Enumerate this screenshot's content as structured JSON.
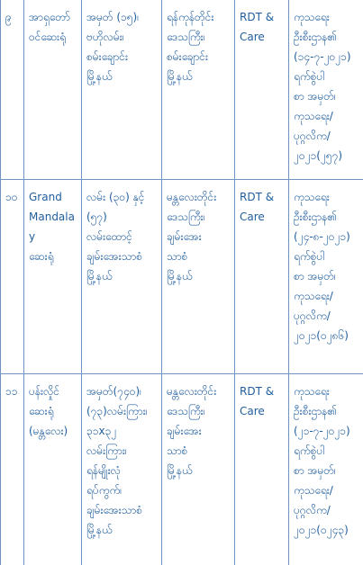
{
  "rows": [
    {
      "no": "၉",
      "name": [
        "အာရှတော်",
        "ဝင်ဆေးရုံ"
      ],
      "address": [
        "အမှတ် (၁၅)၊",
        "ဗဟိုလမ်း၊",
        "စမ်းချောင်း",
        "မြို့နယ်"
      ],
      "region": [
        "ရန်ကုန်တိုင်း",
        "ဒေသကြီး၊",
        "စမ်းချောင်း",
        "မြို့နယ်"
      ],
      "care": [
        "RDT &",
        "Care"
      ],
      "permit": [
        "ကုသရေး",
        "ဦးစီးဌာန၏",
        "(၁၄-၇-၂၀၂၁)",
        "ရက်စွဲပါ",
        "စာ အမှတ်၊",
        "ကုသရေး/",
        "ပုဂ္ဂလိက/",
        "၂၀၂၁(၂၅၇)"
      ]
    },
    {
      "no": "၁၀",
      "name": [
        "Grand",
        "Mandalay",
        "ဆေးရုံ"
      ],
      "address": [
        "လမ်း (၃၀) နှင့်",
        "(၅၇)",
        "လမ်းထောင့်",
        "ချမ်းအေးသာစံ",
        "မြို့နယ်"
      ],
      "region": [
        "မန္တလေးတိုင်း",
        "ဒေသကြီး၊",
        "ချမ်းအေး",
        "သာစံ",
        "မြို့နယ်"
      ],
      "care": [
        "RDT &",
        "Care"
      ],
      "permit": [
        "ကုသရေး",
        "ဦးစီးဌာန၏",
        "(၂၄-၈-၂၀၂၁)",
        "ရက်စွဲပါ",
        "စာ အမှတ်၊",
        "ကုသရေး/",
        "ပုဂ္ဂလိက/",
        "၂၀၂၁(၀၂၈၆)"
      ]
    },
    {
      "no": "၁၁",
      "name": [
        "ပန်းလှိုင်",
        "ဆေးရုံ",
        "(မန္တလေး)"
      ],
      "address": [
        "အမှတ်(၇၄၀)၊",
        "(၇၃)လမ်းကြား၊",
        "၃၁x၃၂",
        "လမ်းကြား၊",
        "ရန်မျိုးလုံ",
        "ရပ်ကွက်၊",
        "ချမ်းအေးသာစံ",
        "မြို့နယ်"
      ],
      "region": [
        "မန္တလေးတိုင်း",
        "ဒေသကြီး၊",
        "ချမ်းအေး",
        "သာစံ",
        "မြို့နယ်"
      ],
      "care": [
        "RDT &",
        "Care"
      ],
      "permit": [
        "ကုသရေး",
        "ဦးစီးဌာန၏",
        "(၂၁-၇-၂၀၂၁)",
        "ရက်စွဲပါ",
        "စာ အမှတ်၊",
        "ကုသရေး/",
        "ပုဂ္ဂလိက/",
        "၂၀၂၁(၀၂၄၃)"
      ]
    }
  ]
}
